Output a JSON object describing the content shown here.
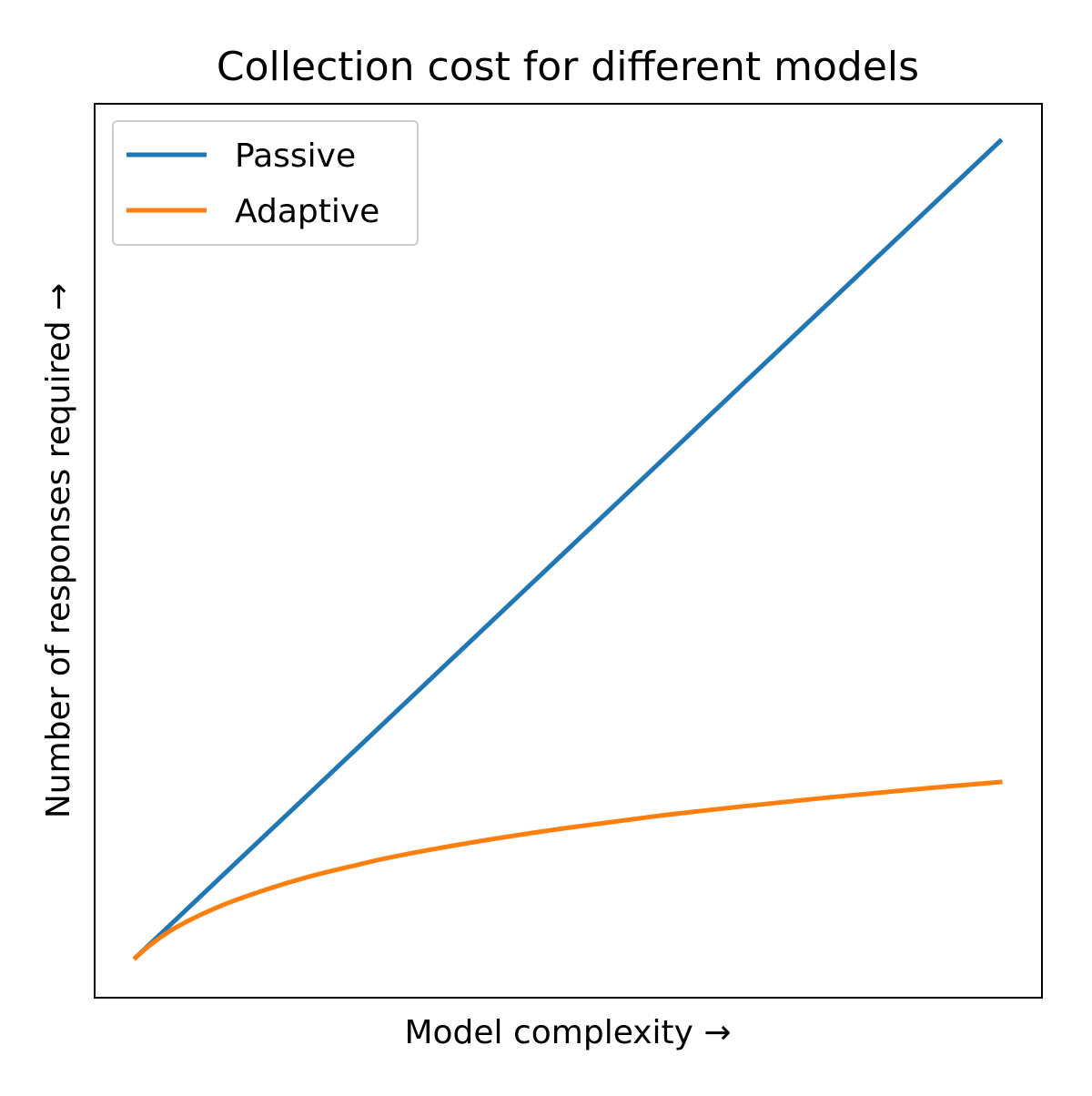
{
  "chart_data": {
    "type": "line",
    "title": "Collection cost for different models",
    "xlabel": "Model complexity →",
    "ylabel": "Number of responses required →",
    "grid": false,
    "legend_position": "top-left",
    "xlim": [
      0,
      1
    ],
    "ylim": [
      0,
      1
    ],
    "series": [
      {
        "name": "Passive",
        "color": "#1f77b4",
        "x": [
          0.0,
          0.1,
          0.2,
          0.3,
          0.4,
          0.5,
          0.6,
          0.7,
          0.8,
          0.9,
          1.0
        ],
        "y": [
          0.0,
          0.1,
          0.2,
          0.3,
          0.4,
          0.5,
          0.6,
          0.7,
          0.8,
          0.9,
          1.0
        ]
      },
      {
        "name": "Adaptive",
        "color": "#ff7f0e",
        "x": [
          0.0,
          0.02,
          0.05,
          0.1,
          0.15,
          0.2,
          0.25,
          0.3,
          0.4,
          0.5,
          0.6,
          0.7,
          0.8,
          0.9,
          1.0
        ],
        "y": [
          0.0,
          0.018,
          0.039,
          0.064,
          0.083,
          0.099,
          0.112,
          0.124,
          0.143,
          0.159,
          0.173,
          0.185,
          0.196,
          0.206,
          0.215
        ]
      }
    ]
  }
}
